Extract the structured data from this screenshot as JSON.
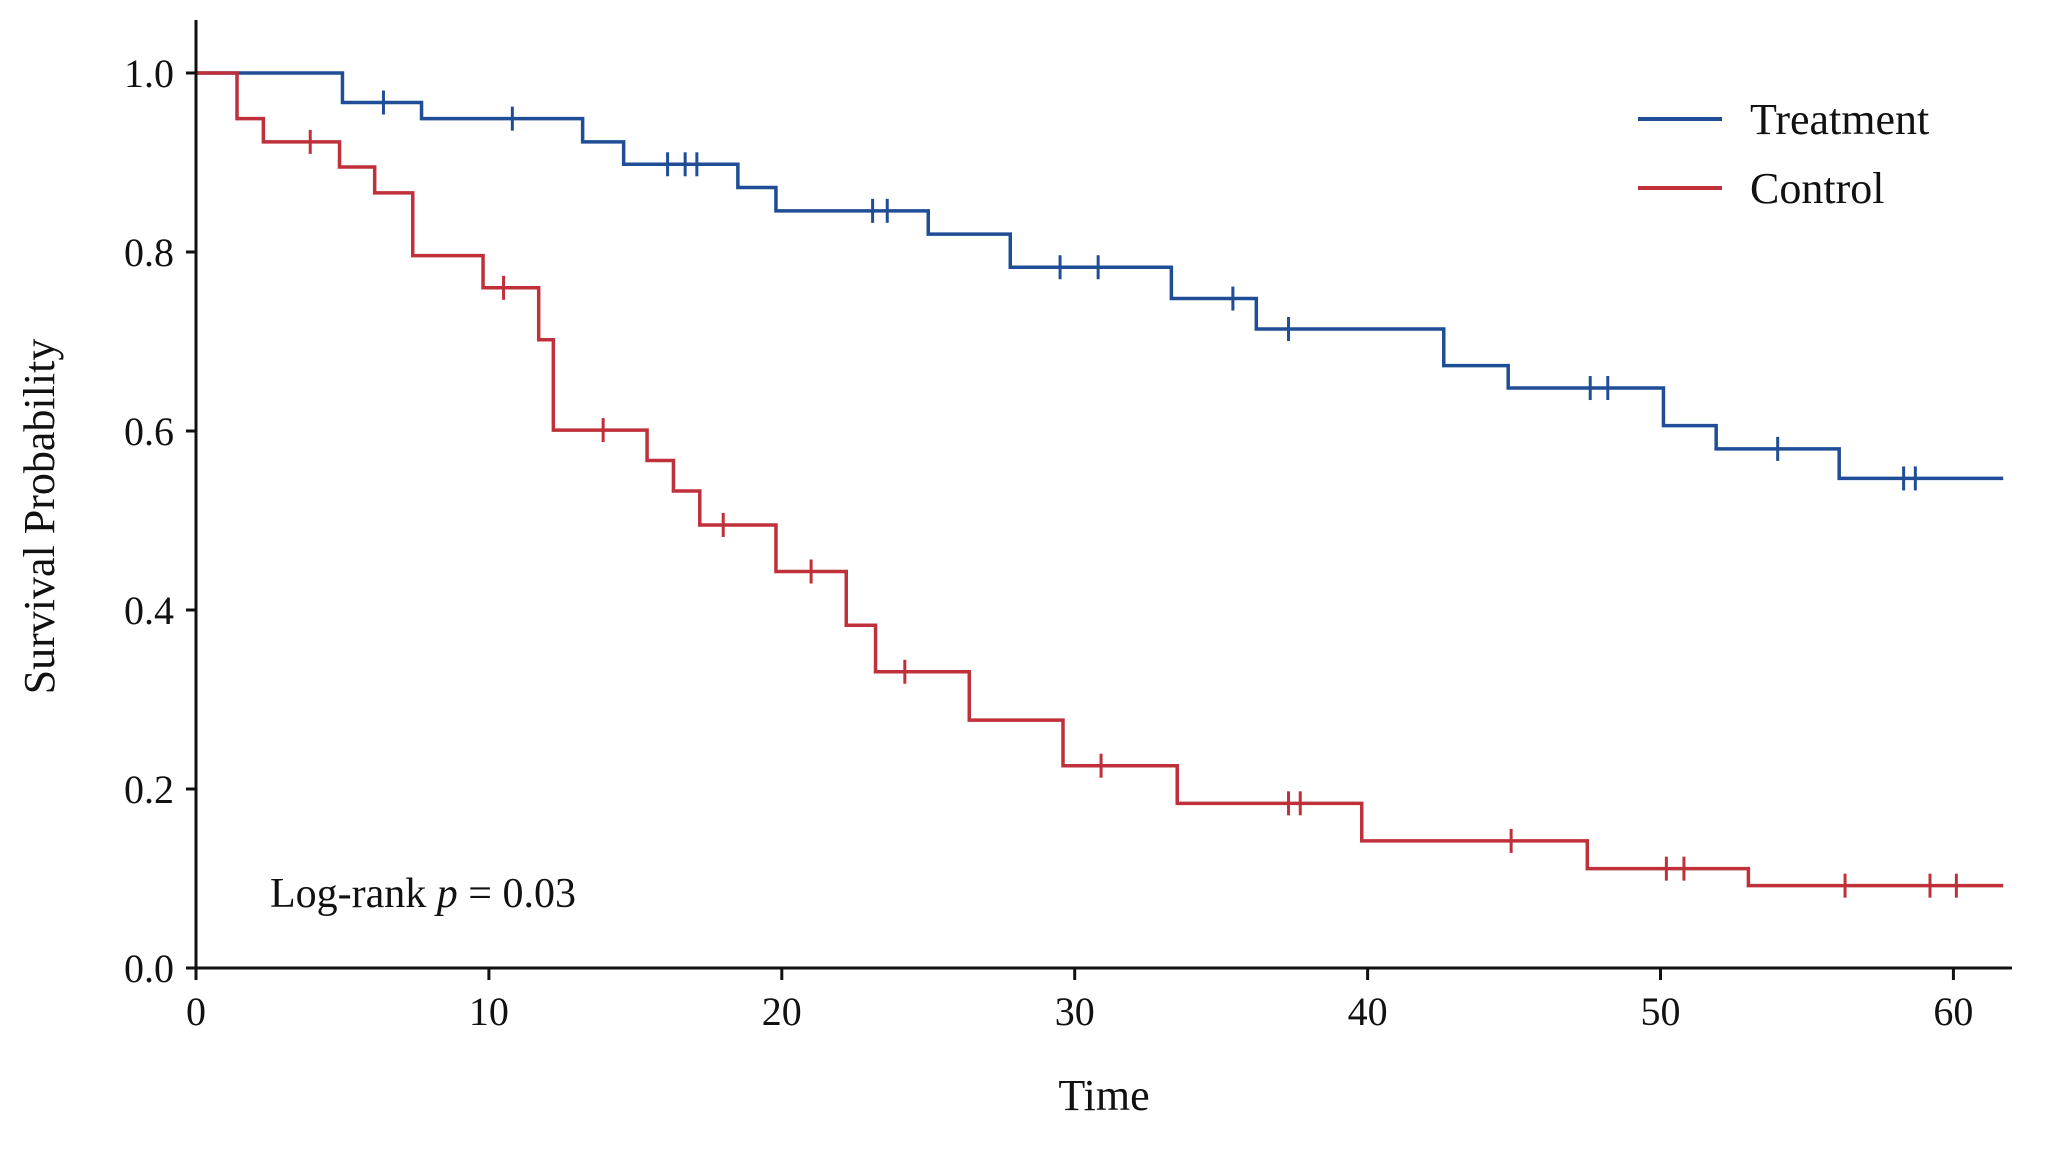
{
  "chart_data": {
    "type": "line",
    "subtype": "kaplan-meier step survival curve",
    "title": "",
    "xlabel": "Time",
    "ylabel": "Survival Probability",
    "xlim": [
      0,
      62
    ],
    "ylim": [
      0,
      1.0
    ],
    "xticks": [
      0,
      10,
      20,
      30,
      40,
      50,
      60
    ],
    "xtick_labels": [
      "0",
      "10",
      "20",
      "30",
      "40",
      "50",
      "60"
    ],
    "yticks": [
      0,
      0.2,
      0.4,
      0.6,
      0.8,
      1.0
    ],
    "ytick_labels": [
      "0.0",
      "0.2",
      "0.4",
      "0.6",
      "0.8",
      "1.0"
    ],
    "grid": false,
    "legend_position": "top-right",
    "annotation": {
      "prefix": "Log-rank ",
      "variable": "p",
      "suffix": " = 0.03"
    },
    "series": [
      {
        "name": "Treatment",
        "color": "#1f4e96",
        "steps": [
          [
            0,
            1.0
          ],
          [
            5.0,
            0.967
          ],
          [
            7.7,
            0.949
          ],
          [
            13.2,
            0.923
          ],
          [
            14.6,
            0.898
          ],
          [
            18.5,
            0.872
          ],
          [
            19.8,
            0.846
          ],
          [
            25.0,
            0.82
          ],
          [
            27.8,
            0.783
          ],
          [
            33.3,
            0.748
          ],
          [
            36.2,
            0.714
          ],
          [
            42.6,
            0.673
          ],
          [
            44.8,
            0.648
          ],
          [
            50.1,
            0.606
          ],
          [
            51.9,
            0.58
          ],
          [
            56.1,
            0.547
          ],
          [
            61.7,
            0.547
          ]
        ],
        "censored": [
          [
            6.4,
            0.967
          ],
          [
            10.8,
            0.949
          ],
          [
            16.1,
            0.898
          ],
          [
            16.7,
            0.898
          ],
          [
            17.1,
            0.898
          ],
          [
            23.1,
            0.846
          ],
          [
            23.6,
            0.846
          ],
          [
            29.5,
            0.783
          ],
          [
            30.8,
            0.783
          ],
          [
            35.4,
            0.748
          ],
          [
            37.3,
            0.714
          ],
          [
            47.6,
            0.648
          ],
          [
            48.2,
            0.648
          ],
          [
            54.0,
            0.58
          ],
          [
            58.3,
            0.547
          ],
          [
            58.7,
            0.547
          ]
        ]
      },
      {
        "name": "Control",
        "color": "#c0303a",
        "steps": [
          [
            0,
            1.0
          ],
          [
            1.4,
            0.949
          ],
          [
            2.3,
            0.923
          ],
          [
            4.9,
            0.895
          ],
          [
            6.1,
            0.866
          ],
          [
            7.4,
            0.796
          ],
          [
            9.8,
            0.76
          ],
          [
            11.7,
            0.702
          ],
          [
            12.2,
            0.601
          ],
          [
            15.4,
            0.567
          ],
          [
            16.3,
            0.533
          ],
          [
            17.2,
            0.495
          ],
          [
            19.8,
            0.443
          ],
          [
            22.2,
            0.383
          ],
          [
            23.2,
            0.331
          ],
          [
            26.4,
            0.277
          ],
          [
            29.6,
            0.226
          ],
          [
            33.5,
            0.184
          ],
          [
            39.8,
            0.142
          ],
          [
            47.5,
            0.111
          ],
          [
            53.0,
            0.092
          ],
          [
            61.7,
            0.092
          ]
        ],
        "censored": [
          [
            3.9,
            0.923
          ],
          [
            10.5,
            0.76
          ],
          [
            13.9,
            0.601
          ],
          [
            18.0,
            0.495
          ],
          [
            21.0,
            0.443
          ],
          [
            24.2,
            0.331
          ],
          [
            30.9,
            0.226
          ],
          [
            37.3,
            0.184
          ],
          [
            37.7,
            0.184
          ],
          [
            44.9,
            0.142
          ],
          [
            50.2,
            0.111
          ],
          [
            50.8,
            0.111
          ],
          [
            56.3,
            0.092
          ],
          [
            59.2,
            0.092
          ],
          [
            60.1,
            0.092
          ]
        ]
      }
    ]
  }
}
